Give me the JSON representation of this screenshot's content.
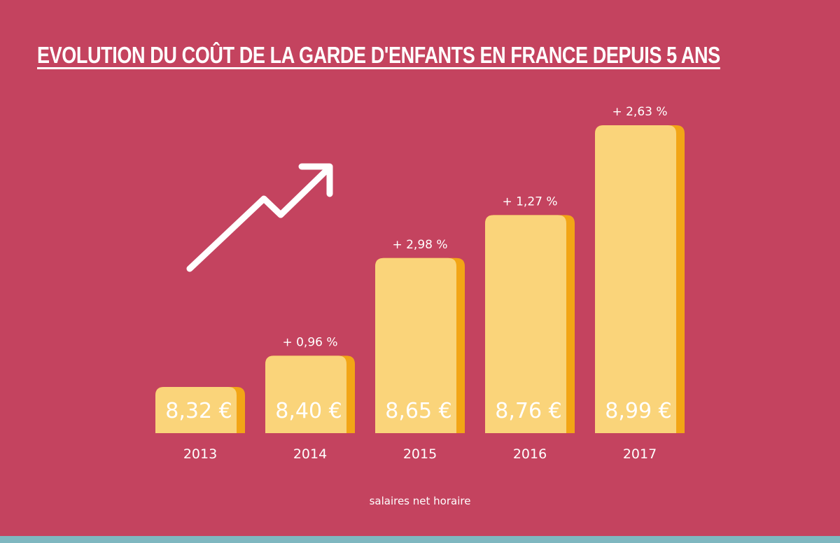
{
  "colors": {
    "background": "#c4435f",
    "bar_fill": "#fad47a",
    "bar_edge": "#f2a516",
    "bottom_strip": "#7fb7c0"
  },
  "decoration": {
    "arrow_icon": "trending-up-arrow-icon"
  },
  "chart_data": {
    "type": "bar",
    "title": "EVOLUTION DU COÛT DE LA GARDE D'ENFANTS EN FRANCE DEPUIS 5 ANS",
    "note": "salaires net horaire",
    "categories": [
      "2013",
      "2014",
      "2015",
      "2016",
      "2017"
    ],
    "values": [
      8.32,
      8.4,
      8.65,
      8.76,
      8.99
    ],
    "value_labels": [
      "8,32 €",
      "8,40 €",
      "8,65 €",
      "8,76 €",
      "8,99 €"
    ],
    "change_labels": [
      "",
      "+ 0,96 %",
      "+ 2,98 %",
      "+ 1,27 %",
      "+ 2,63 %"
    ],
    "unit": "€",
    "grid": false,
    "legend": "none"
  }
}
